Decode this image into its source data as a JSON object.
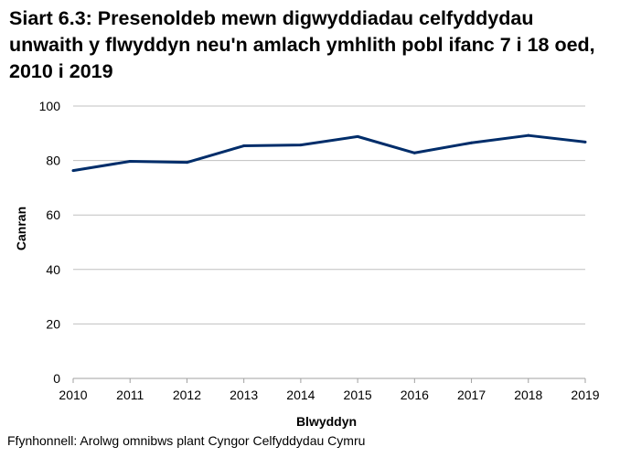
{
  "chart_data": {
    "type": "line",
    "title": "Siart 6.3: Presenoldeb mewn digwyddiadau celfyddydau unwaith y flwyddyn neu'n amlach ymhlith pobl ifanc 7 i 18 oed, 2010 i 2019",
    "xlabel": "Blwyddyn",
    "ylabel": "Canran",
    "categories": [
      "2010",
      "2011",
      "2012",
      "2013",
      "2014",
      "2015",
      "2016",
      "2017",
      "2018",
      "2019"
    ],
    "values": [
      76.3,
      79.7,
      79.3,
      85.4,
      85.7,
      88.8,
      82.8,
      86.5,
      89.2,
      86.8
    ],
    "ylim": [
      0,
      100
    ],
    "yticks": [
      "0",
      "20",
      "40",
      "60",
      "80",
      "100"
    ],
    "grid": true,
    "legend": "none",
    "line_color": "#002D6A",
    "grid_color": "#C0C0C0"
  },
  "source": "Ffynhonnell: Arolwg omnibws plant Cyngor Celfyddydau Cymru"
}
